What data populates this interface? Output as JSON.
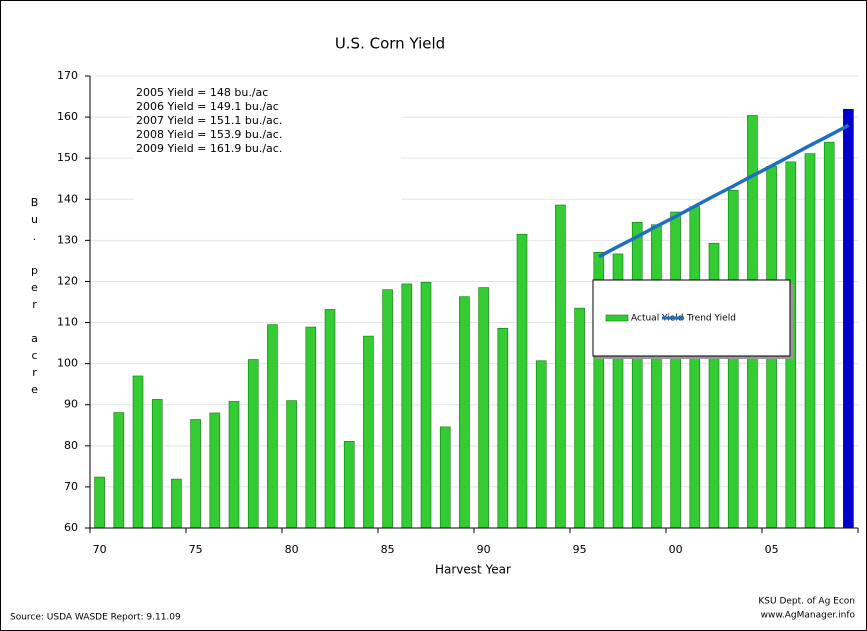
{
  "chart_data": {
    "type": "bar",
    "title": "U.S. Corn Yield",
    "x_label": "Harvest Year",
    "y_label": "Bu. per acre",
    "categories": [
      "70",
      null,
      null,
      null,
      null,
      "75",
      null,
      null,
      null,
      null,
      "80",
      null,
      null,
      null,
      null,
      "85",
      null,
      null,
      null,
      null,
      "90",
      null,
      null,
      null,
      null,
      "95",
      null,
      null,
      null,
      null,
      "00",
      null,
      null,
      null,
      null,
      "05",
      null,
      null,
      null,
      null
    ],
    "series": [
      {
        "name": "Actual Yield",
        "type": "bar",
        "color": "#33cc33",
        "colors": [
          "#33cc33",
          "#33cc33",
          "#33cc33",
          "#33cc33",
          "#33cc33",
          "#33cc33",
          "#33cc33",
          "#33cc33",
          "#33cc33",
          "#33cc33",
          "#33cc33",
          "#33cc33",
          "#33cc33",
          "#33cc33",
          "#33cc33",
          "#33cc33",
          "#33cc33",
          "#33cc33",
          "#33cc33",
          "#33cc33",
          "#33cc33",
          "#33cc33",
          "#33cc33",
          "#33cc33",
          "#33cc33",
          "#33cc33",
          "#33cc33",
          "#33cc33",
          "#33cc33",
          "#33cc33",
          "#33cc33",
          "#33cc33",
          "#33cc33",
          "#33cc33",
          "#33cc33",
          "#33cc33",
          "#33cc33",
          "#33cc33",
          "#33cc33",
          "#0000cc"
        ],
        "values": [
          72.4,
          88.1,
          97,
          91.3,
          71.9,
          86.4,
          88,
          90.8,
          101,
          109.5,
          91,
          108.9,
          113.2,
          81.1,
          106.7,
          118,
          119.4,
          119.8,
          84.6,
          116.3,
          118.5,
          108.6,
          131.5,
          100.7,
          138.6,
          113.5,
          127.1,
          126.7,
          134.4,
          133.8,
          136.9,
          138.2,
          129.3,
          142.2,
          160.4,
          148,
          149.1,
          151.1,
          153.9,
          161.9
        ]
      },
      {
        "name": "Trend Yield",
        "type": "line",
        "color": "#1f6fc0",
        "values": [
          null,
          null,
          null,
          null,
          null,
          null,
          null,
          null,
          null,
          null,
          null,
          null,
          null,
          null,
          null,
          null,
          null,
          null,
          null,
          null,
          null,
          null,
          null,
          null,
          null,
          null,
          126,
          128.5,
          130.9,
          133.4,
          135.8,
          138.3,
          140.8,
          143.2,
          145.7,
          148.1,
          150.6,
          153.1,
          155.5,
          158
        ]
      }
    ],
    "ylim": [
      60,
      170
    ],
    "yticks": [
      60,
      70,
      80,
      90,
      100,
      110,
      120,
      130,
      140,
      150,
      160,
      170
    ],
    "grid": true,
    "annotations": [
      "2005 Yield = 148 bu./ac",
      "2006 Yield = 149.1 bu./ac",
      "2007 Yield = 151.1 bu./ac.",
      "2008 Yield = 153.9 bu./ac.",
      "2009 Yield =  161.9 bu./ac."
    ],
    "source": "Source:  USDA WASDE Report: 9.11.09",
    "credit": [
      "KSU Dept. of Ag Econ",
      "www.AgManager.info"
    ]
  }
}
